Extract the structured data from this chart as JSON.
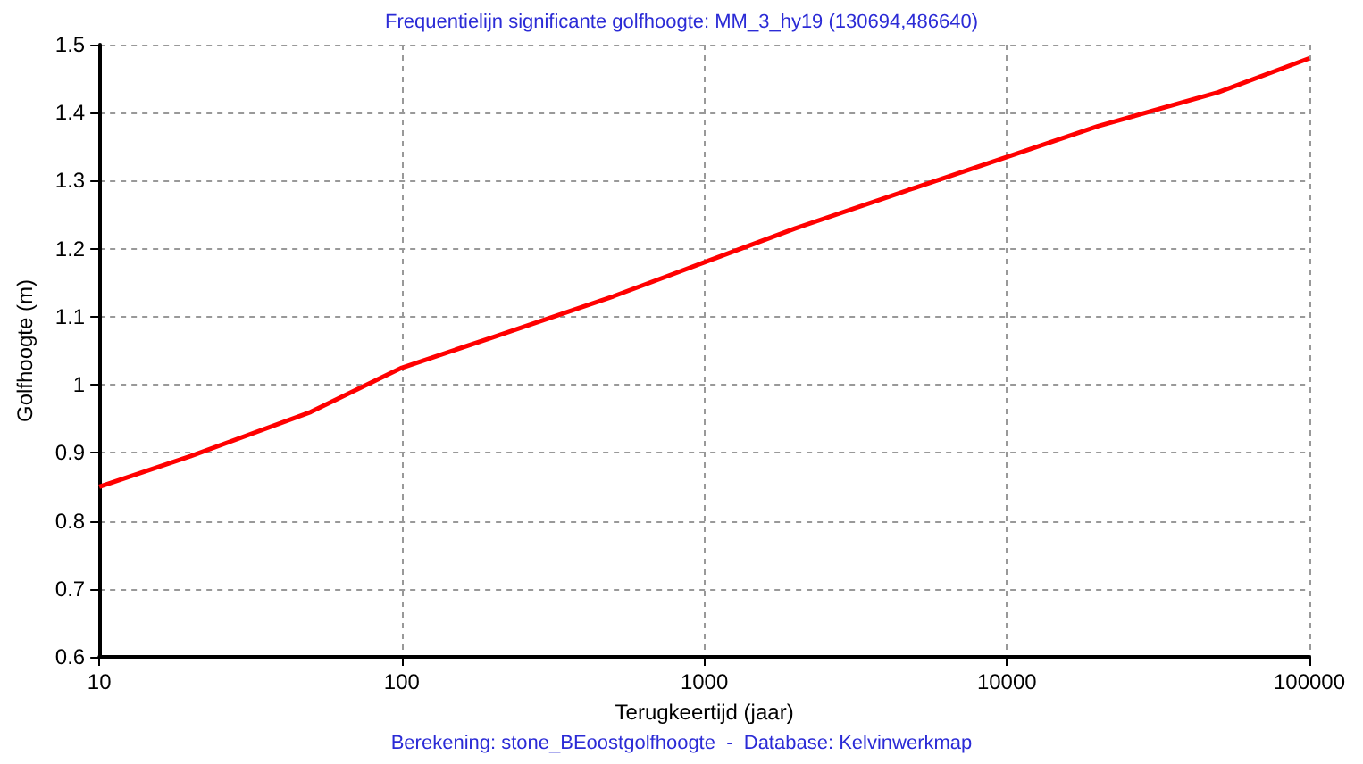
{
  "chart_data": {
    "type": "line",
    "title": "Frequentielijn significante golfhoogte: MM_3_hy19 (130694,486640)",
    "xlabel": "Terugkeertijd (jaar)",
    "ylabel": "Golfhoogte (m)",
    "annotations": [
      "Berekening: stone_BEoostgolfhoogte  -  Database: Kelvinwerkmap"
    ],
    "x": [
      10,
      20,
      50,
      100,
      200,
      500,
      1000,
      2000,
      5000,
      10000,
      20000,
      50000,
      100000
    ],
    "series": [
      {
        "color": "#ff0000",
        "values": [
          0.85,
          0.895,
          0.96,
          1.025,
          1.07,
          1.13,
          1.18,
          1.23,
          1.29,
          1.335,
          1.38,
          1.43,
          1.48
        ]
      }
    ],
    "log": "x",
    "xlim": [
      10,
      100000
    ],
    "xticks": [
      10,
      100,
      1000,
      10000,
      100000
    ],
    "ylim": [
      0.6,
      1.5
    ],
    "yticks": [
      0.6,
      0.7,
      0.8,
      0.9,
      1,
      1.1,
      1.2,
      1.3,
      1.4,
      1.5
    ],
    "grid": true,
    "marker": "none",
    "line_style": "solid"
  }
}
